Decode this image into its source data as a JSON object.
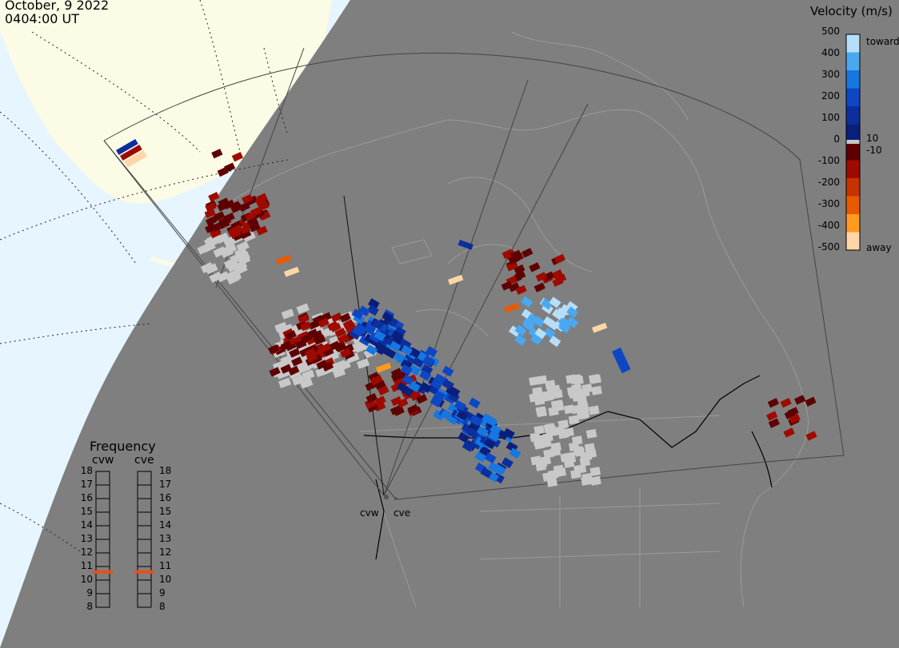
{
  "header": {
    "date": "October, 9 2022",
    "time": "0404:00 UT"
  },
  "colorbar": {
    "title": "Velocity (m/s)",
    "ticks": [
      "500",
      "400",
      "300",
      "200",
      "100",
      "0",
      "-100",
      "-200",
      "-300",
      "-400",
      "-500"
    ],
    "tick_values": [
      500,
      400,
      300,
      200,
      100,
      0,
      -100,
      -200,
      -300,
      -400,
      -500
    ],
    "toward_label": "toward",
    "away_label": "away",
    "threshold_pos": "10",
    "threshold_neg": "-10",
    "colors_toward": [
      "#0a1f7a",
      "#0c2f9e",
      "#0d47c4",
      "#1677e0",
      "#4aa8f0",
      "#b7def8"
    ],
    "colors_away": [
      "#5e0000",
      "#9e0a00",
      "#c83200",
      "#e85a00",
      "#ff9a20",
      "#ffd6a8"
    ],
    "ground_scatter_color": "#c8c8c8"
  },
  "frequency_panel": {
    "title": "Frequency",
    "radars": [
      "cvw",
      "cve"
    ],
    "ticks": [
      "18",
      "17",
      "16",
      "15",
      "14",
      "13",
      "12",
      "11",
      "10",
      "9",
      "8"
    ],
    "tick_values": [
      18,
      17,
      16,
      15,
      14,
      13,
      12,
      11,
      10,
      9,
      8
    ],
    "cvw_freq_mhz": 10.6,
    "cve_freq_mhz": 10.6,
    "marker_color": "#e8501e"
  },
  "sites": {
    "west_label": "cvw",
    "east_label": "cve"
  },
  "map": {
    "ocean_color": "#e6f5ff",
    "land_color": "#fbfbe6",
    "night_color": "#7f7f7f",
    "coast_color": "#9a9a9a"
  }
}
